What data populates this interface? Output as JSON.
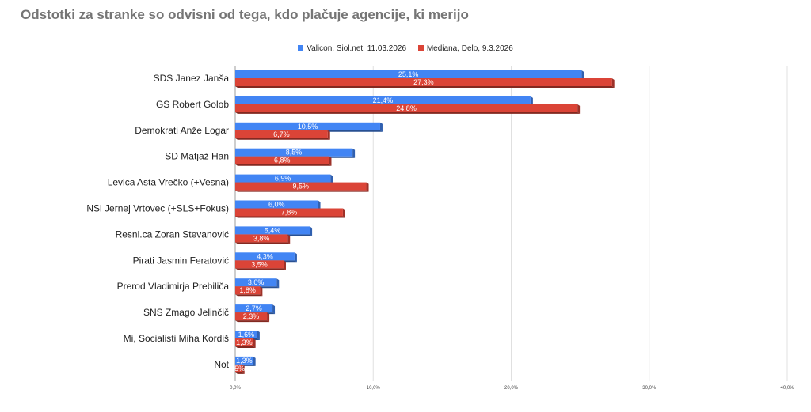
{
  "chart_data": {
    "type": "bar",
    "orientation": "horizontal",
    "title": "Odstotki za stranke so odvisni od tega, kdo plačuje agencije, ki merijo",
    "categories": [
      "SDS Janez Janša",
      "GS Robert Golob",
      "Demokrati Anže Logar",
      "SD Matjaž Han",
      "Levica Asta Vrečko (+Vesna)",
      "NSi Jernej Vrtovec (+SLS+Fokus)",
      "Resni.ca Zoran Stevanović",
      "Pirati Jasmin Feratović",
      "Prerod Vladimirja Prebiliča",
      "SNS Zmago Jelinčič",
      "Mi, Socialisti Miha Kordiš",
      "Not"
    ],
    "series": [
      {
        "name": "Valicon, Siol.net, 11.03.2026",
        "color": "#4285f4",
        "values": [
          25.1,
          21.4,
          10.5,
          8.5,
          6.9,
          6.0,
          5.4,
          4.3,
          3.0,
          2.7,
          1.6,
          1.3
        ],
        "labels": [
          "25,1%",
          "21,4%",
          "10,5%",
          "8,5%",
          "6,9%",
          "6,0%",
          "5,4%",
          "4,3%",
          "3,0%",
          "2,7%",
          "1,6%",
          "1,3%"
        ]
      },
      {
        "name": "Mediana, Delo, 9.3.2026",
        "color": "#db4437",
        "values": [
          27.3,
          24.8,
          6.7,
          6.8,
          9.5,
          7.8,
          3.8,
          3.5,
          1.8,
          2.3,
          1.3,
          0.5
        ],
        "labels": [
          "27,3%",
          "24,8%",
          "6,7%",
          "6,8%",
          "9,5%",
          "7,8%",
          "3,8%",
          "3,5%",
          "1,8%",
          "2,3%",
          "1,3%",
          ",5%"
        ]
      }
    ],
    "x_ticks": [
      0,
      10,
      20,
      30,
      40
    ],
    "x_tick_labels": [
      "0,0%",
      "10,0%",
      "20,0%",
      "30,0%",
      "40,0%"
    ],
    "xlim": [
      0,
      40
    ],
    "grid": true,
    "legend_position": "top"
  }
}
